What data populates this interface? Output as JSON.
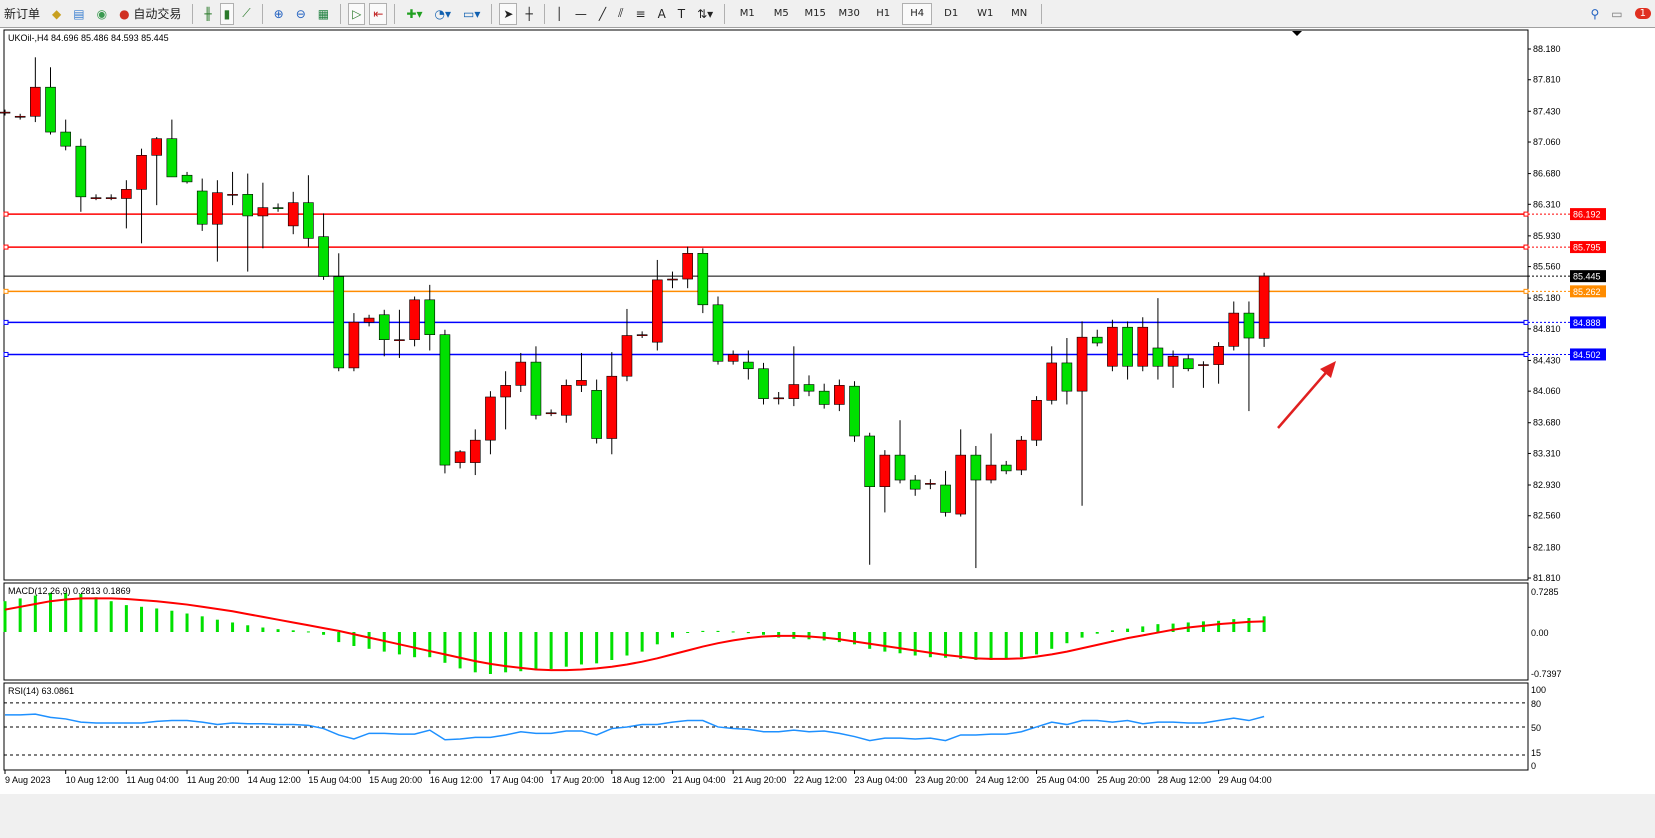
{
  "toolbar": {
    "new_order": "新订单",
    "auto_trade": "自动交易",
    "icons": [
      "history-icon",
      "signal-icon",
      "radio-icon",
      "bar-chart-icon",
      "candlestick-icon",
      "line-chart-icon",
      "zoom-in-icon",
      "zoom-out-icon",
      "tile-icon",
      "autoscroll-icon",
      "chart-shift-icon",
      "new-indicator-icon",
      "clock-icon",
      "template-icon",
      "cursor-icon",
      "crosshair-icon",
      "vertical-line-icon",
      "horizontal-line-icon",
      "trendline-icon",
      "equidistant-channel-icon",
      "fibonacci-icon",
      "text-icon",
      "text-label-icon",
      "arrows-icon"
    ],
    "text_tool": "A",
    "timeframes": [
      "M1",
      "M5",
      "M15",
      "M30",
      "H1",
      "H4",
      "D1",
      "W1",
      "MN"
    ],
    "active_timeframe": "H4",
    "notification_count": "1"
  },
  "chart": {
    "symbol_info": "UKOil-,H4  84.696 85.486 84.593 85.445",
    "price_ticks": [
      "88.180",
      "87.810",
      "87.430",
      "87.060",
      "86.680",
      "86.310",
      "85.930",
      "85.560",
      "85.180",
      "84.810",
      "84.430",
      "84.060",
      "83.680",
      "83.310",
      "82.930",
      "82.560",
      "82.180",
      "81.810"
    ],
    "levels": [
      {
        "price": "86.192",
        "color": "#ff0000"
      },
      {
        "price": "85.795",
        "color": "#ff0000"
      },
      {
        "price": "85.445",
        "color": "#000000"
      },
      {
        "price": "85.262",
        "color": "#ff8c00"
      },
      {
        "price": "84.888",
        "color": "#0000ff"
      },
      {
        "price": "84.502",
        "color": "#0000ff"
      }
    ],
    "bull_color": "#ff0000",
    "bear_color": "#00e000"
  },
  "chart_data": [
    {
      "type": "candlestick",
      "title": "UKOil-,H4",
      "ylim": [
        81.81,
        88.18
      ],
      "x_labels": [
        "9 Aug 2023",
        "10 Aug 12:00",
        "11 Aug 04:00",
        "11 Aug 20:00",
        "14 Aug 12:00",
        "15 Aug 04:00",
        "15 Aug 20:00",
        "16 Aug 12:00",
        "17 Aug 04:00",
        "17 Aug 20:00",
        "18 Aug 12:00",
        "21 Aug 04:00",
        "21 Aug 20:00",
        "22 Aug 12:00",
        "23 Aug 04:00",
        "23 Aug 20:00",
        "24 Aug 12:00",
        "25 Aug 04:00",
        "25 Aug 20:00",
        "28 Aug 12:00",
        "29 Aug 04:00"
      ],
      "ohlc": [
        [
          87.42,
          87.45,
          87.38,
          87.42
        ],
        [
          87.37,
          87.4,
          87.33,
          87.37
        ],
        [
          87.37,
          88.08,
          87.3,
          87.72
        ],
        [
          87.72,
          87.96,
          87.15,
          87.18
        ],
        [
          87.18,
          87.33,
          86.96,
          87.01
        ],
        [
          87.01,
          87.1,
          86.22,
          86.4
        ],
        [
          86.39,
          86.43,
          86.36,
          86.39
        ],
        [
          86.39,
          86.43,
          86.36,
          86.39
        ],
        [
          86.38,
          86.6,
          86.02,
          86.49
        ],
        [
          86.49,
          86.98,
          85.84,
          86.9
        ],
        [
          86.9,
          87.12,
          86.3,
          87.1
        ],
        [
          87.1,
          87.33,
          86.64,
          86.64
        ],
        [
          86.66,
          86.7,
          86.56,
          86.58
        ],
        [
          86.47,
          86.62,
          85.99,
          86.07
        ],
        [
          86.07,
          86.6,
          85.62,
          86.45
        ],
        [
          86.43,
          86.7,
          86.3,
          86.43
        ],
        [
          86.43,
          86.68,
          85.5,
          86.17
        ],
        [
          86.17,
          86.57,
          85.78,
          86.27
        ],
        [
          86.27,
          86.32,
          86.22,
          86.26
        ],
        [
          86.05,
          86.46,
          85.95,
          86.33
        ],
        [
          86.33,
          86.66,
          85.8,
          85.9
        ],
        [
          85.92,
          86.2,
          85.4,
          85.44
        ],
        [
          85.44,
          85.72,
          84.3,
          84.34
        ],
        [
          84.34,
          85.0,
          84.3,
          84.89
        ],
        [
          84.89,
          84.98,
          84.84,
          84.94
        ],
        [
          84.98,
          85.04,
          84.48,
          84.68
        ],
        [
          84.68,
          85.04,
          84.46,
          84.68
        ],
        [
          84.68,
          85.2,
          84.6,
          85.16
        ],
        [
          85.16,
          85.34,
          84.55,
          84.74
        ],
        [
          84.74,
          84.8,
          83.07,
          83.17
        ],
        [
          83.2,
          83.35,
          83.13,
          83.33
        ],
        [
          83.2,
          83.6,
          83.05,
          83.47
        ],
        [
          83.47,
          84.06,
          83.3,
          83.99
        ],
        [
          83.99,
          84.3,
          83.6,
          84.13
        ],
        [
          84.13,
          84.52,
          84.05,
          84.41
        ],
        [
          84.41,
          84.6,
          83.72,
          83.77
        ],
        [
          83.8,
          83.84,
          83.76,
          83.8
        ],
        [
          83.77,
          84.2,
          83.68,
          84.13
        ],
        [
          84.13,
          84.52,
          84.05,
          84.19
        ],
        [
          84.07,
          84.2,
          83.43,
          83.49
        ],
        [
          83.49,
          84.53,
          83.3,
          84.24
        ],
        [
          84.24,
          85.05,
          84.18,
          84.73
        ],
        [
          84.74,
          84.78,
          84.7,
          84.74
        ],
        [
          84.65,
          85.64,
          84.55,
          85.4
        ],
        [
          85.41,
          85.5,
          85.3,
          85.41
        ],
        [
          85.41,
          85.8,
          85.3,
          85.72
        ],
        [
          85.72,
          85.78,
          85.0,
          85.1
        ],
        [
          85.1,
          85.2,
          84.38,
          84.42
        ],
        [
          84.42,
          84.55,
          84.38,
          84.5
        ],
        [
          84.41,
          84.55,
          84.2,
          84.33
        ],
        [
          84.33,
          84.4,
          83.9,
          83.97
        ],
        [
          83.97,
          84.05,
          83.9,
          83.98
        ],
        [
          83.97,
          84.6,
          83.88,
          84.14
        ],
        [
          84.14,
          84.25,
          84.0,
          84.06
        ],
        [
          84.06,
          84.15,
          83.85,
          83.9
        ],
        [
          83.9,
          84.2,
          83.82,
          84.13
        ],
        [
          84.12,
          84.18,
          83.45,
          83.52
        ],
        [
          83.52,
          83.56,
          81.97,
          82.91
        ],
        [
          82.91,
          83.35,
          82.6,
          83.29
        ],
        [
          83.29,
          83.71,
          82.95,
          82.99
        ],
        [
          82.99,
          83.05,
          82.8,
          82.88
        ],
        [
          82.95,
          83.0,
          82.88,
          82.95
        ],
        [
          82.93,
          83.1,
          82.55,
          82.6
        ],
        [
          82.58,
          83.6,
          82.55,
          83.29
        ],
        [
          83.29,
          83.4,
          81.93,
          82.99
        ],
        [
          82.99,
          83.55,
          82.95,
          83.17
        ],
        [
          83.17,
          83.22,
          83.06,
          83.1
        ],
        [
          83.11,
          83.52,
          83.05,
          83.47
        ],
        [
          83.47,
          84.0,
          83.4,
          83.95
        ],
        [
          83.95,
          84.6,
          83.9,
          84.4
        ],
        [
          84.4,
          84.7,
          83.9,
          84.06
        ],
        [
          84.06,
          84.9,
          82.68,
          84.71
        ],
        [
          84.71,
          84.8,
          84.6,
          84.64
        ],
        [
          84.36,
          84.92,
          84.3,
          84.83
        ],
        [
          84.83,
          84.9,
          84.2,
          84.36
        ],
        [
          84.36,
          84.95,
          84.3,
          84.83
        ],
        [
          84.58,
          85.18,
          84.2,
          84.36
        ],
        [
          84.36,
          84.55,
          84.1,
          84.48
        ],
        [
          84.45,
          84.5,
          84.3,
          84.33
        ],
        [
          84.38,
          84.42,
          84.1,
          84.38
        ],
        [
          84.38,
          84.65,
          84.15,
          84.6
        ],
        [
          84.6,
          85.14,
          84.55,
          85.0
        ],
        [
          85.0,
          85.14,
          83.82,
          84.7
        ],
        [
          84.696,
          85.486,
          84.593,
          85.445
        ]
      ]
    },
    {
      "type": "bar+line",
      "title": "MACD(12,26,9) 0.2813 0.1869",
      "ylim": [
        -0.7397,
        0.7285
      ],
      "y_ticks": [
        "0.7285",
        "0.00",
        "-0.7397"
      ],
      "series": [
        {
          "name": "MACD",
          "values": [
            0.55,
            0.6,
            0.65,
            0.7,
            0.7,
            0.68,
            0.62,
            0.55,
            0.48,
            0.45,
            0.42,
            0.38,
            0.33,
            0.28,
            0.22,
            0.17,
            0.12,
            0.08,
            0.05,
            0.03,
            0.01,
            -0.05,
            -0.18,
            -0.25,
            -0.3,
            -0.35,
            -0.4,
            -0.45,
            -0.45,
            -0.55,
            -0.65,
            -0.72,
            -0.75,
            -0.72,
            -0.7,
            -0.68,
            -0.66,
            -0.62,
            -0.58,
            -0.56,
            -0.5,
            -0.42,
            -0.35,
            -0.22,
            -0.1,
            0.0,
            0.02,
            0.02,
            0.01,
            -0.02,
            -0.05,
            -0.1,
            -0.12,
            -0.13,
            -0.15,
            -0.18,
            -0.22,
            -0.3,
            -0.35,
            -0.38,
            -0.42,
            -0.45,
            -0.46,
            -0.48,
            -0.5,
            -0.5,
            -0.48,
            -0.45,
            -0.4,
            -0.3,
            -0.2,
            -0.1,
            -0.03,
            0.03,
            0.06,
            0.1,
            0.14,
            0.15,
            0.17,
            0.19,
            0.2,
            0.23,
            0.25,
            0.28
          ]
        },
        {
          "name": "Signal",
          "values": [
            0.4,
            0.45,
            0.5,
            0.55,
            0.58,
            0.6,
            0.6,
            0.6,
            0.59,
            0.57,
            0.55,
            0.52,
            0.49,
            0.45,
            0.41,
            0.37,
            0.32,
            0.27,
            0.22,
            0.17,
            0.12,
            0.07,
            0.02,
            -0.04,
            -0.1,
            -0.16,
            -0.22,
            -0.28,
            -0.34,
            -0.4,
            -0.46,
            -0.52,
            -0.57,
            -0.61,
            -0.64,
            -0.67,
            -0.68,
            -0.68,
            -0.67,
            -0.65,
            -0.62,
            -0.58,
            -0.53,
            -0.47,
            -0.4,
            -0.33,
            -0.26,
            -0.2,
            -0.15,
            -0.11,
            -0.08,
            -0.07,
            -0.07,
            -0.08,
            -0.1,
            -0.13,
            -0.17,
            -0.21,
            -0.25,
            -0.29,
            -0.33,
            -0.37,
            -0.41,
            -0.44,
            -0.47,
            -0.48,
            -0.48,
            -0.47,
            -0.44,
            -0.4,
            -0.35,
            -0.29,
            -0.23,
            -0.17,
            -0.11,
            -0.06,
            -0.01,
            0.04,
            0.08,
            0.11,
            0.14,
            0.16,
            0.18,
            0.19
          ]
        }
      ]
    },
    {
      "type": "line",
      "title": "RSI(14) 63.0861",
      "ylim": [
        0,
        100
      ],
      "y_ticks": [
        "100",
        "80",
        "50",
        "15",
        "0"
      ],
      "levels": [
        80,
        50,
        15
      ],
      "series": [
        {
          "name": "RSI",
          "values": [
            65,
            65,
            66,
            62,
            60,
            56,
            55,
            55,
            55,
            55,
            57,
            58,
            58,
            56,
            53,
            55,
            54,
            54,
            53,
            53,
            52,
            48,
            40,
            35,
            42,
            42,
            41,
            41,
            46,
            34,
            35,
            37,
            37,
            40,
            44,
            42,
            42,
            45,
            45,
            40,
            48,
            50,
            53,
            53,
            56,
            58,
            58,
            50,
            48,
            47,
            44,
            44,
            46,
            44,
            45,
            42,
            38,
            33,
            36,
            36,
            35,
            36,
            33,
            40,
            40,
            41,
            41,
            44,
            50,
            56,
            53,
            58,
            58,
            56,
            58,
            54,
            56,
            56,
            55,
            55,
            58,
            61,
            58,
            63
          ]
        }
      ]
    }
  ]
}
